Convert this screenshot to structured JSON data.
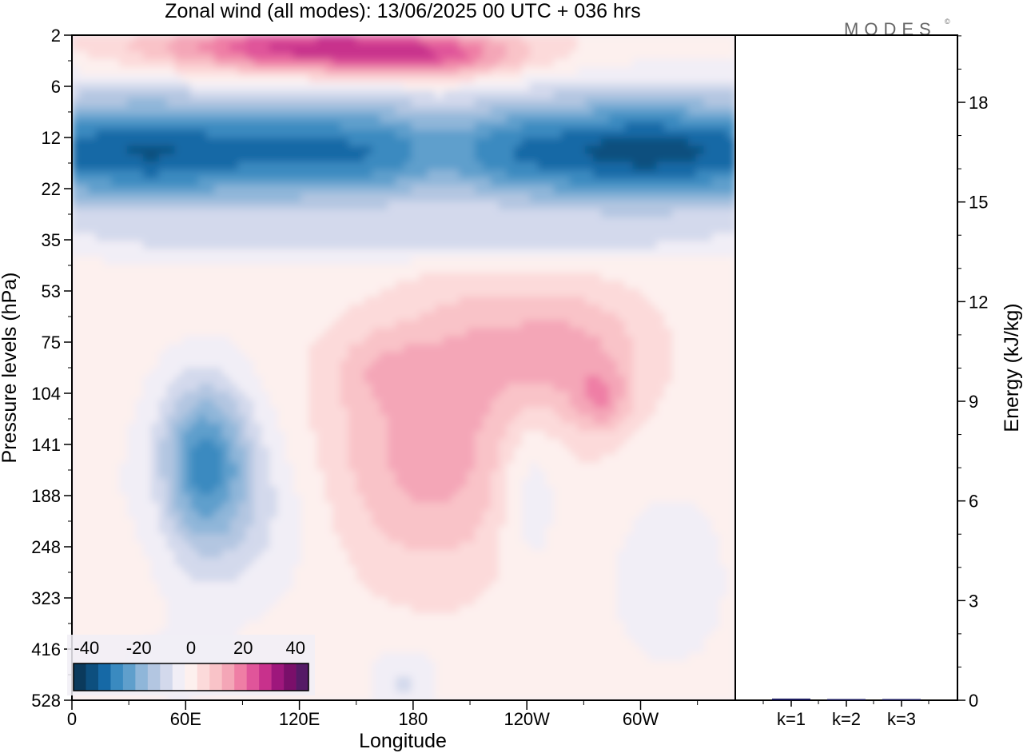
{
  "chart_data": [
    {
      "type": "heatmap",
      "title": "Zonal wind (all modes):  13/06/2025  00 UTC  + 036 hrs",
      "xlabel": "Longitude",
      "ylabel": "Pressure levels (hPa)",
      "x_ticks": [
        "0",
        "60E",
        "120E",
        "180",
        "120W",
        "60W"
      ],
      "y_ticks": [
        "2",
        "6",
        "12",
        "22",
        "35",
        "53",
        "75",
        "104",
        "141",
        "188",
        "248",
        "323",
        "416",
        "528"
      ],
      "colorbar": {
        "tick_labels": [
          "-40",
          "-20",
          "0",
          "20",
          "40"
        ],
        "range": [
          -45,
          45
        ],
        "colors": [
          "#0b3a5c",
          "#0d4f7e",
          "#1669a6",
          "#3a8ac0",
          "#5f9fcc",
          "#8fb6d9",
          "#b3c6e1",
          "#d3d9ec",
          "#f1eef6",
          "#fdf0ee",
          "#fcdada",
          "#f9c3c8",
          "#f4a6b7",
          "#ef7ea5",
          "#e0559a",
          "#c8318c",
          "#9e177c",
          "#7a0f6a",
          "#551a66"
        ]
      }
    },
    {
      "type": "bar",
      "categories": [
        "k=1",
        "k=2",
        "k=3"
      ],
      "values": [
        0.05,
        0.03,
        0.02
      ],
      "ylabel": "Energy (kJ/kg)",
      "ylim": [
        0,
        20
      ],
      "y_ticks": [
        "0",
        "3",
        "6",
        "9",
        "12",
        "15",
        "18"
      ],
      "bar_color": "#1a1a5e"
    }
  ],
  "logo": {
    "text": "MODES",
    "mark": "©"
  }
}
